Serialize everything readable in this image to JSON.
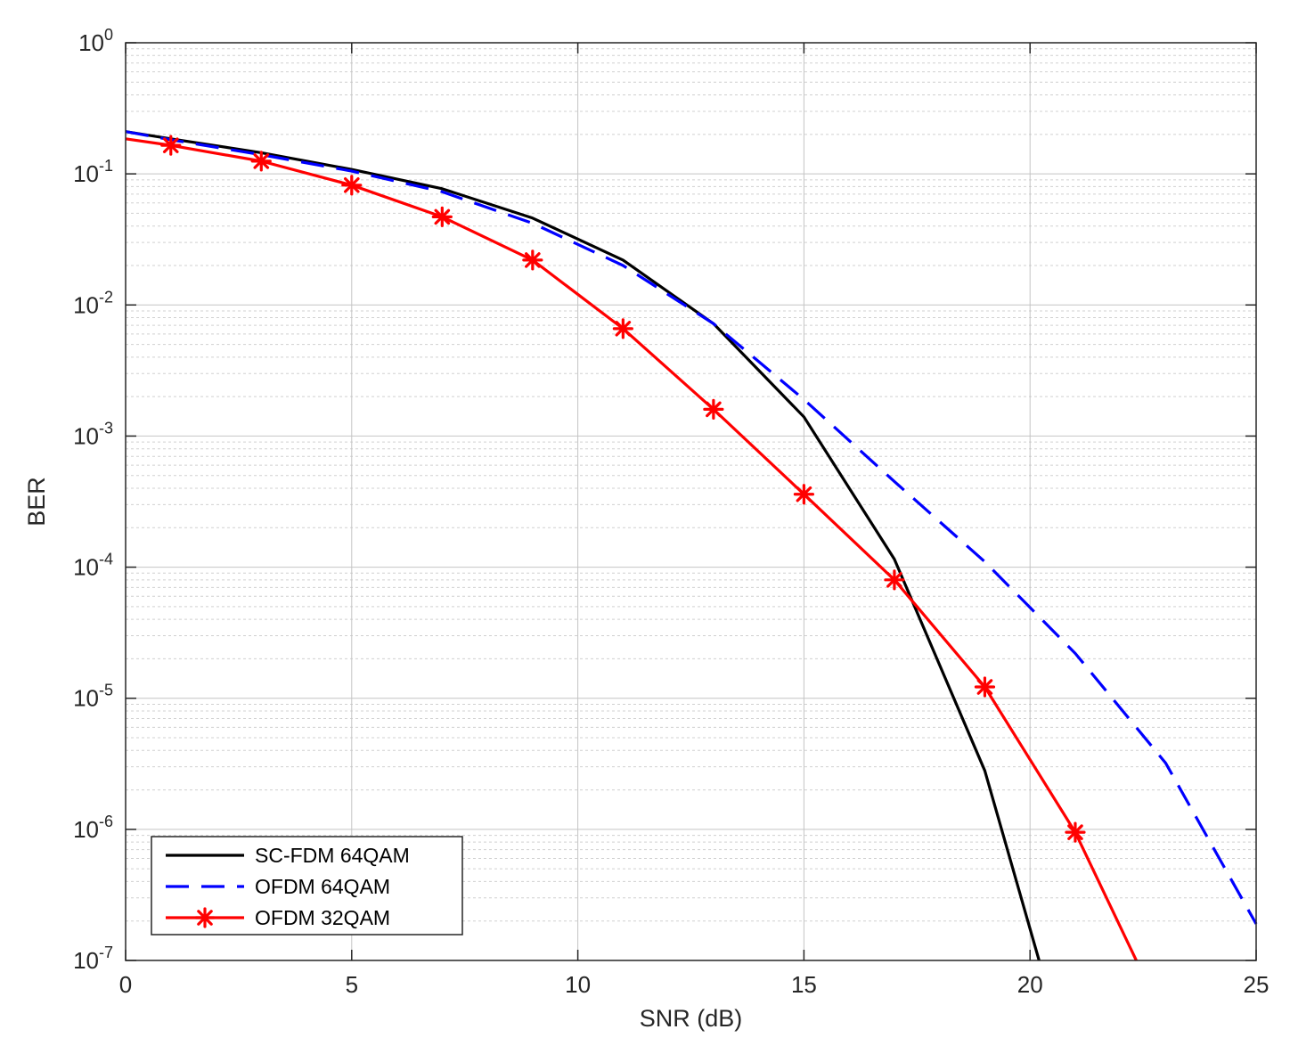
{
  "chart_data": {
    "type": "line",
    "title": "",
    "xlabel": "SNR (dB)",
    "ylabel": "BER",
    "xlim": [
      0,
      25
    ],
    "ylim": [
      1e-07,
      1
    ],
    "yscale": "log",
    "grid": true,
    "minor_grid": true,
    "legend_position": "bottom-left",
    "x_ticks": [
      {
        "value": 0,
        "label": "0"
      },
      {
        "value": 5,
        "label": "5"
      },
      {
        "value": 10,
        "label": "10"
      },
      {
        "value": 15,
        "label": "15"
      },
      {
        "value": 20,
        "label": "20"
      },
      {
        "value": 25,
        "label": "25"
      }
    ],
    "y_ticks": [
      {
        "value": 1,
        "base": "10",
        "exp": "0"
      },
      {
        "value": 0.1,
        "base": "10",
        "exp": "-1"
      },
      {
        "value": 0.01,
        "base": "10",
        "exp": "-2"
      },
      {
        "value": 0.001,
        "base": "10",
        "exp": "-3"
      },
      {
        "value": 0.0001,
        "base": "10",
        "exp": "-4"
      },
      {
        "value": 1e-05,
        "base": "10",
        "exp": "-5"
      },
      {
        "value": 1e-06,
        "base": "10",
        "exp": "-6"
      },
      {
        "value": 1e-07,
        "base": "10",
        "exp": "-7"
      }
    ],
    "series": [
      {
        "name": "SC-FDM 64QAM",
        "color": "#000000",
        "style": "solid",
        "marker": "none",
        "points": [
          [
            0,
            0.21
          ],
          [
            1,
            0.185
          ],
          [
            3,
            0.145
          ],
          [
            5,
            0.108
          ],
          [
            7,
            0.077
          ],
          [
            9,
            0.046
          ],
          [
            11,
            0.022
          ],
          [
            13,
            0.0072
          ],
          [
            15,
            0.0014
          ],
          [
            17,
            0.000115
          ],
          [
            19,
            2.8e-06
          ],
          [
            20.2,
            1e-07
          ]
        ]
      },
      {
        "name": "OFDM 64QAM",
        "color": "#0000ff",
        "style": "dashed",
        "marker": "none",
        "points": [
          [
            0,
            0.21
          ],
          [
            1,
            0.182
          ],
          [
            3,
            0.14
          ],
          [
            5,
            0.105
          ],
          [
            7,
            0.073
          ],
          [
            9,
            0.042
          ],
          [
            11,
            0.02
          ],
          [
            13,
            0.0072
          ],
          [
            15,
            0.0019
          ],
          [
            17,
            0.00045
          ],
          [
            19,
            0.00011
          ],
          [
            21,
            2.2e-05
          ],
          [
            23,
            3.2e-06
          ],
          [
            25,
            1.9e-07
          ]
        ]
      },
      {
        "name": "OFDM 32QAM",
        "color": "#ff0000",
        "style": "solid",
        "marker": "asterisk",
        "marker_points": [
          [
            1,
            0.165
          ],
          [
            3,
            0.125
          ],
          [
            5,
            0.082
          ],
          [
            7,
            0.047
          ],
          [
            9,
            0.022
          ],
          [
            11,
            0.0066
          ],
          [
            13,
            0.0016
          ],
          [
            15,
            0.00036
          ],
          [
            17,
            8e-05
          ],
          [
            19,
            1.22e-05
          ],
          [
            21,
            9.5e-07
          ]
        ],
        "points": [
          [
            0,
            0.185
          ],
          [
            1,
            0.165
          ],
          [
            3,
            0.125
          ],
          [
            5,
            0.082
          ],
          [
            7,
            0.047
          ],
          [
            9,
            0.022
          ],
          [
            11,
            0.0066
          ],
          [
            13,
            0.0016
          ],
          [
            15,
            0.00036
          ],
          [
            17,
            8e-05
          ],
          [
            19,
            1.22e-05
          ],
          [
            21,
            9.5e-07
          ],
          [
            22.35,
            1e-07
          ]
        ]
      }
    ]
  }
}
